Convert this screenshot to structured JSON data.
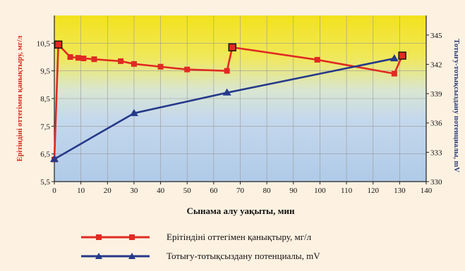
{
  "chart_data": {
    "type": "line",
    "xlabel": "Сынама алу уақыты, мин",
    "ylabel_left": "Ерітіндіні оттегімен қанықтыру, мг/л",
    "ylabel_right": "Тотығу-тотықсыздану потенциалы, mV",
    "x_ticks": [
      0,
      10,
      20,
      30,
      40,
      50,
      60,
      70,
      80,
      90,
      100,
      110,
      120,
      130,
      140
    ],
    "xlim": [
      0,
      140
    ],
    "y_left_ticks": [
      "5,5",
      "6,5",
      "7,5",
      "8,5",
      "9,5",
      "10,5"
    ],
    "y_left_tick_values": [
      5.5,
      6.5,
      7.5,
      8.5,
      9.5,
      10.5
    ],
    "ylim_left": [
      5.5,
      11.5
    ],
    "y_right_ticks": [
      330,
      333,
      336,
      339,
      342,
      345
    ],
    "ylim_right": [
      330,
      347
    ],
    "background": "gradient yellow (top) to light blue (bottom)",
    "grid": true,
    "legend_position": "bottom",
    "series": [
      {
        "name": "Ерітіндіні оттегімен қанықтыру, мг/л",
        "axis": "left",
        "color": "#e02a22",
        "marker": "square",
        "x": [
          0,
          1.5,
          6,
          9,
          11,
          15,
          25,
          30,
          40,
          50,
          65,
          67,
          99,
          128,
          131
        ],
        "y": [
          6.3,
          10.45,
          10.0,
          9.97,
          9.95,
          9.92,
          9.85,
          9.75,
          9.65,
          9.55,
          9.5,
          10.35,
          9.9,
          9.4,
          10.05
        ],
        "highlight_indices": [
          1,
          11,
          14
        ]
      },
      {
        "name": "Тотығу-тотықсыздану потенциалы, mV",
        "axis": "right",
        "color": "#25398a",
        "marker": "triangle",
        "x": [
          0,
          30,
          65,
          128
        ],
        "y": [
          332.3,
          337.0,
          339.1,
          342.6
        ]
      }
    ]
  }
}
